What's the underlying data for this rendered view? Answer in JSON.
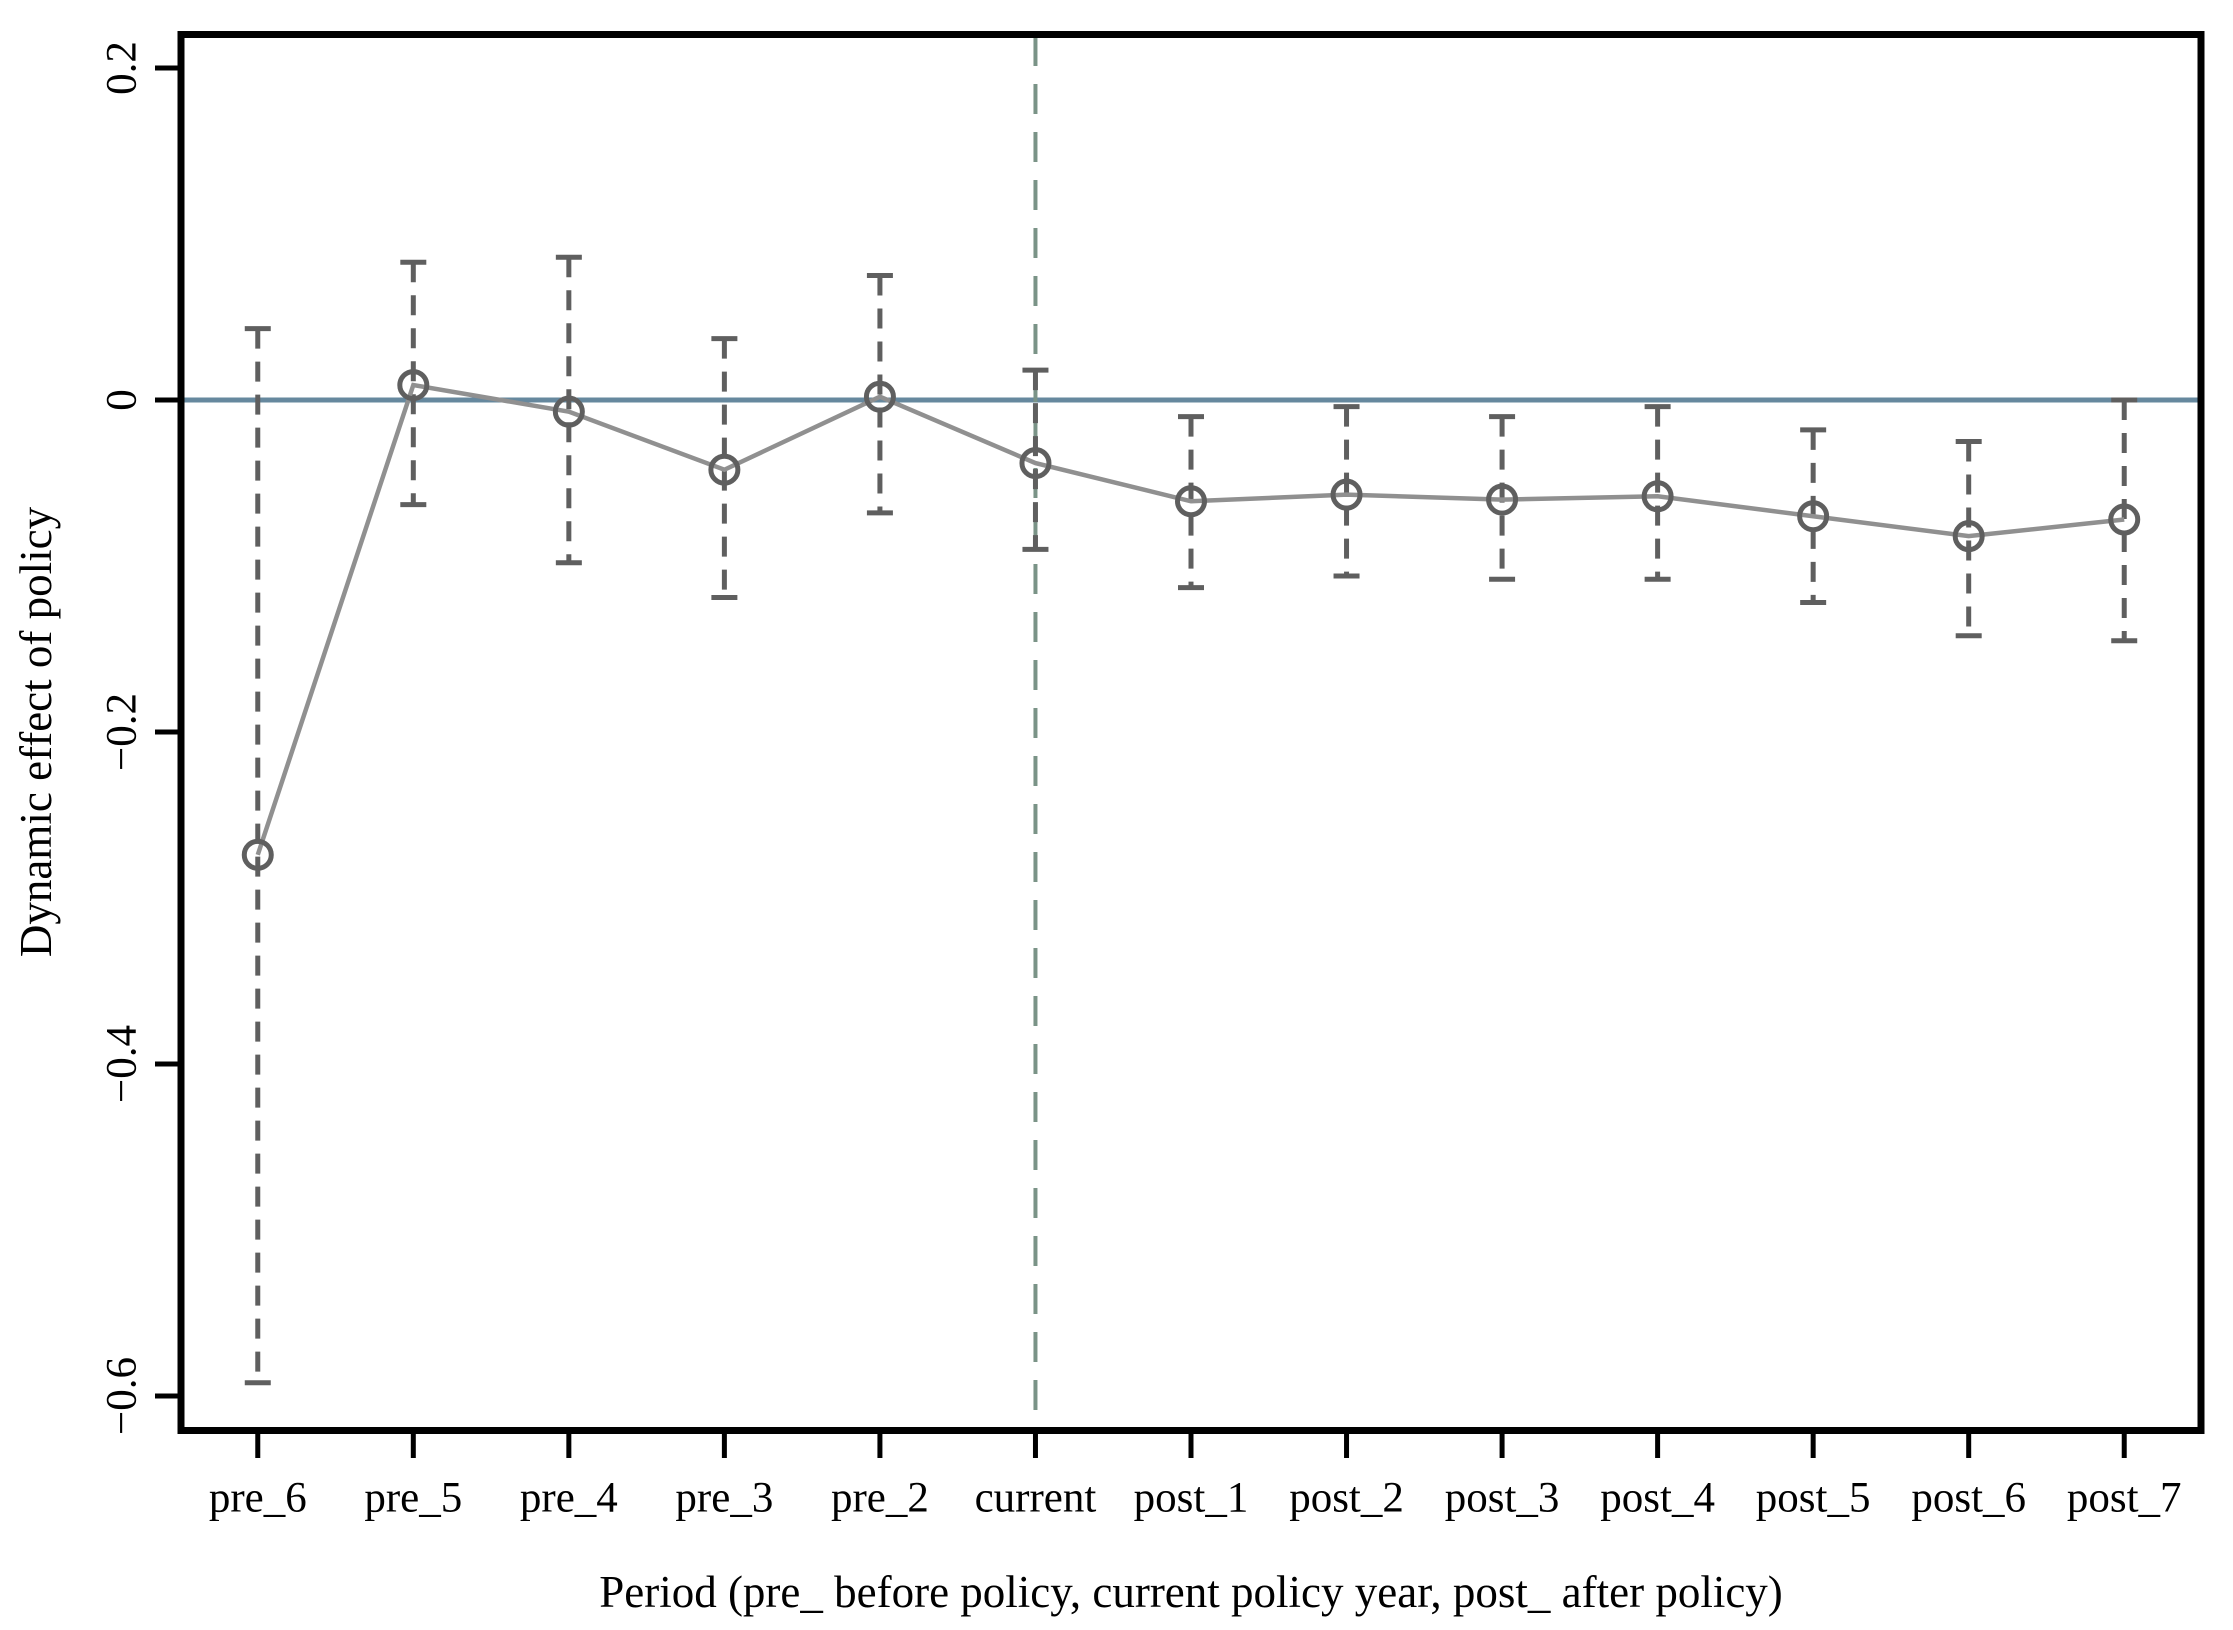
{
  "figure": {
    "background": "#ffffff"
  },
  "chart_data": {
    "type": "line",
    "title": "",
    "xlabel": "Period (pre_ before policy, current policy year, post_ after policy)",
    "ylabel": "Dynamic effect of policy",
    "categories": [
      "pre_6",
      "pre_5",
      "pre_4",
      "pre_3",
      "pre_2",
      "current",
      "post_1",
      "post_2",
      "post_3",
      "post_4",
      "post_5",
      "post_6",
      "post_7"
    ],
    "series": [
      {
        "name": "Dynamic effect of policy",
        "values": [
          -0.274,
          0.009,
          -0.007,
          -0.042,
          0.002,
          -0.038,
          -0.061,
          -0.057,
          -0.06,
          -0.058,
          -0.07,
          -0.082,
          -0.072
        ],
        "ci_high": [
          0.043,
          0.083,
          0.086,
          0.037,
          0.075,
          0.018,
          -0.01,
          -0.004,
          -0.01,
          -0.004,
          -0.018,
          -0.025,
          0.0
        ],
        "ci_low": [
          -0.592,
          -0.063,
          -0.098,
          -0.119,
          -0.068,
          -0.09,
          -0.113,
          -0.106,
          -0.108,
          -0.108,
          -0.122,
          -0.142,
          -0.145
        ]
      }
    ],
    "y_ticks": [
      {
        "value": 0.2,
        "label": "0.2"
      },
      {
        "value": 0.0,
        "label": "0"
      },
      {
        "value": -0.2,
        "label": "−0.2"
      },
      {
        "value": -0.4,
        "label": "−0.4"
      },
      {
        "value": -0.6,
        "label": "−0.6"
      }
    ],
    "ylim": [
      -0.6217,
      0.2211
    ],
    "grid": false,
    "legend_position": "none",
    "marker": "open-circle",
    "error_bar_style": "dashed-with-caps",
    "reference_lines": [
      {
        "name": "zero-line",
        "axis": "y",
        "value": 0,
        "style": "solid",
        "color": "#66889e"
      },
      {
        "name": "policy-event-line",
        "axis": "x",
        "category": "current",
        "style": "dashed",
        "color": "#7a9387"
      }
    ],
    "colors": {
      "frame": "#000000",
      "text": "#000000",
      "trend_line": "#909090",
      "marker_stroke": "#5f5f5f",
      "error_bar": "#5f5f5f",
      "zero_line": "#66889e",
      "event_line": "#7a9387"
    }
  }
}
